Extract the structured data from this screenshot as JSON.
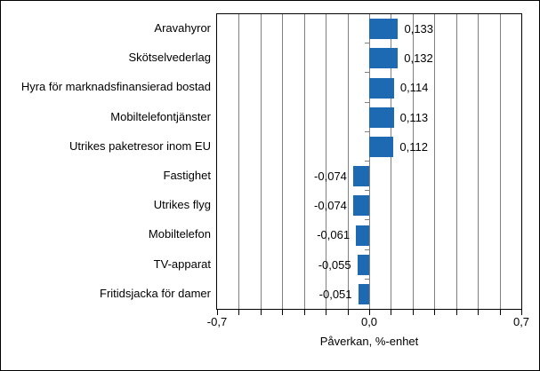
{
  "chart_data": {
    "type": "bar",
    "orientation": "horizontal",
    "title": "",
    "categories": [
      "Aravahyror",
      "Skötselvederlag",
      "Hyra för marknadsfinansierad bostad",
      "Mobiltelefontjänster",
      "Utrikes paketresor inom EU",
      "Fastighet",
      "Utrikes flyg",
      "Mobiltelefon",
      "TV-apparat",
      "Fritidsjacka för damer"
    ],
    "values": [
      0.133,
      0.132,
      0.114,
      0.113,
      0.112,
      -0.074,
      -0.074,
      -0.061,
      -0.055,
      -0.051
    ],
    "value_labels": [
      "0,133",
      "0,132",
      "0,114",
      "0,113",
      "0,112",
      "-0,074",
      "-0,074",
      "-0,061",
      "-0,055",
      "-0,051"
    ],
    "xlabel": "Påverkan, %-enhet",
    "xlim": [
      -0.7,
      0.7
    ],
    "x_tick_values": [
      -0.7,
      0.0,
      0.7
    ],
    "x_tick_labels": [
      "-0,7",
      "0,0",
      "0,7"
    ],
    "gridline_step": 0.1,
    "grid": true,
    "legend": false,
    "bar_color": "#1d6ab3",
    "gridline_color": "#808080",
    "axis_color": "#000000",
    "background_color": "#ffffff"
  }
}
